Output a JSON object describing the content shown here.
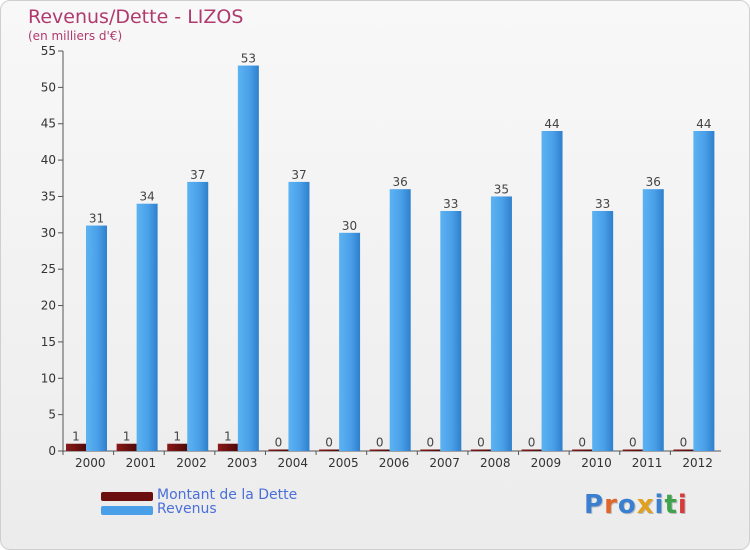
{
  "title": "Revenus/Dette - LIZOS",
  "subtitle": "(en milliers d'€)",
  "logo": {
    "text": "Proxiti",
    "colors": [
      "#3b7fd0",
      "#e0662a",
      "#3b7fd0",
      "#e0a020",
      "#3b7fd0",
      "#3fa34d",
      "#d83a3a"
    ]
  },
  "chart_data": {
    "type": "bar",
    "title": "Revenus/Dette - LIZOS",
    "subtitle": "(en milliers d'€)",
    "categories": [
      "2000",
      "2001",
      "2002",
      "2003",
      "2004",
      "2005",
      "2006",
      "2007",
      "2008",
      "2009",
      "2010",
      "2011",
      "2012"
    ],
    "series": [
      {
        "name": "Montant de la Dette",
        "color": "#6b0f0f",
        "values": [
          1,
          1,
          1,
          1,
          0,
          0,
          0,
          0,
          0,
          0,
          0,
          0,
          0
        ]
      },
      {
        "name": "Revenus",
        "color": "#4aa0e8",
        "values": [
          31,
          34,
          37,
          53,
          37,
          30,
          36,
          33,
          35,
          44,
          33,
          36,
          44
        ]
      }
    ],
    "ylim": [
      0,
      55
    ],
    "yticks": [
      0,
      5,
      10,
      15,
      20,
      25,
      30,
      35,
      40,
      45,
      50,
      55
    ],
    "grid": false,
    "legend": "bottom-left"
  }
}
